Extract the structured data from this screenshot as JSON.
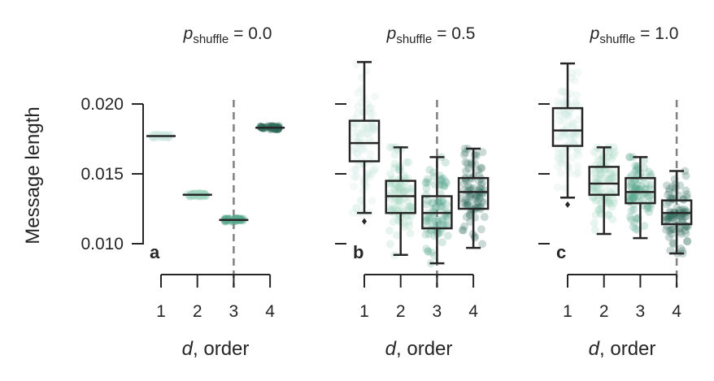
{
  "figure": {
    "ylabel": "Message length",
    "xlabel_var": "d",
    "xlabel_rest": ", order",
    "title_prefix": "p",
    "title_sub": "shuffle",
    "title_eq": " = ",
    "ytick_labels": [
      "0.020",
      "0.015",
      "0.010"
    ],
    "colors": {
      "ink": "#262626",
      "dashed": "#808080",
      "d1": "#cbe8df",
      "d2": "#9ed3c1",
      "d3": "#5aa88e",
      "d4": "#2e6b5a"
    }
  },
  "chart_data": [
    {
      "type": "box",
      "panel": "a",
      "title_value": "0.0",
      "categories": [
        "1",
        "2",
        "3",
        "4"
      ],
      "ylim": [
        0.0082,
        0.0222
      ],
      "yticks": [
        0.01,
        0.015,
        0.02
      ],
      "vline_x": 3,
      "series": [
        {
          "x": 1,
          "min": 0.0177,
          "q1": 0.0177,
          "median": 0.0177,
          "q3": 0.0177,
          "max": 0.0177,
          "outliers": []
        },
        {
          "x": 2,
          "min": 0.0135,
          "q1": 0.0135,
          "median": 0.0135,
          "q3": 0.0135,
          "max": 0.0135,
          "outliers": []
        },
        {
          "x": 3,
          "min": 0.0117,
          "q1": 0.0117,
          "median": 0.0117,
          "q3": 0.0117,
          "max": 0.0117,
          "outliers": []
        },
        {
          "x": 4,
          "min": 0.0183,
          "q1": 0.0183,
          "median": 0.0183,
          "q3": 0.0183,
          "max": 0.0183,
          "outliers": []
        }
      ]
    },
    {
      "type": "box",
      "panel": "b",
      "title_value": "0.5",
      "categories": [
        "1",
        "2",
        "3",
        "4"
      ],
      "ylim": [
        0.0082,
        0.0222
      ],
      "yticks": [
        0.01,
        0.015,
        0.02
      ],
      "vline_x": 3,
      "series": [
        {
          "x": 1,
          "min": 0.0122,
          "q1": 0.0159,
          "median": 0.0172,
          "q3": 0.0188,
          "max": 0.023,
          "outliers": [
            0.0116
          ]
        },
        {
          "x": 2,
          "min": 0.0092,
          "q1": 0.0122,
          "median": 0.0134,
          "q3": 0.0145,
          "max": 0.0169,
          "outliers": []
        },
        {
          "x": 3,
          "min": 0.0086,
          "q1": 0.0111,
          "median": 0.0122,
          "q3": 0.0134,
          "max": 0.0162,
          "outliers": []
        },
        {
          "x": 4,
          "min": 0.0097,
          "q1": 0.0125,
          "median": 0.0137,
          "q3": 0.0147,
          "max": 0.0168,
          "outliers": []
        }
      ]
    },
    {
      "type": "box",
      "panel": "c",
      "title_value": "1.0",
      "categories": [
        "1",
        "2",
        "3",
        "4"
      ],
      "ylim": [
        0.0082,
        0.0222
      ],
      "yticks": [
        0.01,
        0.015,
        0.02
      ],
      "vline_x": 4,
      "series": [
        {
          "x": 1,
          "min": 0.0133,
          "q1": 0.017,
          "median": 0.0181,
          "q3": 0.0197,
          "max": 0.0229,
          "outliers": [
            0.0128
          ]
        },
        {
          "x": 2,
          "min": 0.0107,
          "q1": 0.0135,
          "median": 0.0143,
          "q3": 0.0155,
          "max": 0.0169,
          "outliers": []
        },
        {
          "x": 3,
          "min": 0.0104,
          "q1": 0.0129,
          "median": 0.0137,
          "q3": 0.0147,
          "max": 0.0162,
          "outliers": []
        },
        {
          "x": 4,
          "min": 0.0093,
          "q1": 0.0114,
          "median": 0.0122,
          "q3": 0.0131,
          "max": 0.0152,
          "outliers": []
        }
      ]
    }
  ]
}
